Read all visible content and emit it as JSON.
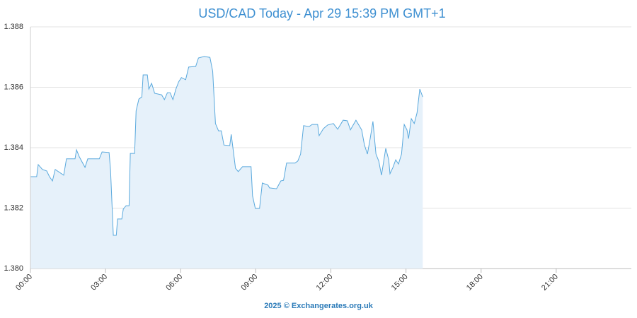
{
  "chart_data": {
    "type": "area",
    "title": "USD/CAD Today - Apr 29 15:39 PM GMT+1",
    "credit": "2025 © Exchangerates.org.uk",
    "line_color": "#5aa9dd",
    "fill_color": "#e6f1fa",
    "grid": true,
    "xlim": [
      0,
      24
    ],
    "xticks": [
      {
        "value": 0,
        "label": "00:00"
      },
      {
        "value": 3,
        "label": "03:00"
      },
      {
        "value": 6,
        "label": "06:00"
      },
      {
        "value": 9,
        "label": "09:00"
      },
      {
        "value": 12,
        "label": "12:00"
      },
      {
        "value": 15,
        "label": "15:00"
      },
      {
        "value": 18,
        "label": "18:00"
      },
      {
        "value": 21,
        "label": "21:00"
      }
    ],
    "ylim": [
      1.38,
      1.388
    ],
    "yticks": [
      {
        "value": 1.38,
        "label": "1.380"
      },
      1.382,
      1.384,
      1.386,
      {
        "value": 1.388,
        "label": "1.388"
      }
    ],
    "x": [
      0,
      0.25,
      0.31,
      0.48,
      0.65,
      0.76,
      0.88,
      0.99,
      1.33,
      1.44,
      1.78,
      1.84,
      1.95,
      2.18,
      2.29,
      2.75,
      2.86,
      3.14,
      3.2,
      3.31,
      3.43,
      3.48,
      3.65,
      3.71,
      3.82,
      3.94,
      3.99,
      4.16,
      4.22,
      4.33,
      4.45,
      4.5,
      4.67,
      4.73,
      4.84,
      4.96,
      5.24,
      5.35,
      5.47,
      5.58,
      5.69,
      5.81,
      5.92,
      6.03,
      6.2,
      6.32,
      6.6,
      6.71,
      6.94,
      7.17,
      7.28,
      7.39,
      7.51,
      7.62,
      7.73,
      7.96,
      8.02,
      8.19,
      8.3,
      8.47,
      8.81,
      8.87,
      8.98,
      9.15,
      9.26,
      9.49,
      9.55,
      9.83,
      10,
      10.11,
      10.23,
      10.57,
      10.68,
      10.79,
      10.91,
      11.13,
      11.25,
      11.47,
      11.53,
      11.7,
      11.87,
      12.1,
      12.27,
      12.49,
      12.66,
      12.78,
      13.0,
      13.23,
      13.34,
      13.46,
      13.57,
      13.68,
      13.8,
      13.91,
      14.02,
      14.19,
      14.31,
      14.36,
      14.48,
      14.59,
      14.7,
      14.82,
      14.93,
      15.04,
      15.1,
      15.21,
      15.33,
      15.44,
      15.55,
      15.67
    ],
    "values": [
      1.38304,
      1.38304,
      1.38344,
      1.38328,
      1.38323,
      1.38304,
      1.3829,
      1.38328,
      1.38309,
      1.38363,
      1.38363,
      1.38393,
      1.3837,
      1.38335,
      1.38363,
      1.38363,
      1.38386,
      1.38384,
      1.38325,
      1.3811,
      1.3811,
      1.38164,
      1.38164,
      1.38197,
      1.38208,
      1.38208,
      1.38381,
      1.38381,
      1.38522,
      1.38561,
      1.38568,
      1.38641,
      1.38641,
      1.38594,
      1.38613,
      1.3858,
      1.38575,
      1.38559,
      1.38582,
      1.38582,
      1.38559,
      1.38594,
      1.38618,
      1.38632,
      1.38625,
      1.38667,
      1.38669,
      1.38697,
      1.38702,
      1.38699,
      1.38653,
      1.3848,
      1.38456,
      1.38456,
      1.38409,
      1.38407,
      1.38444,
      1.38332,
      1.38321,
      1.38337,
      1.38337,
      1.38241,
      1.38199,
      1.38199,
      1.38283,
      1.38276,
      1.38267,
      1.38264,
      1.3829,
      1.38292,
      1.38349,
      1.38349,
      1.38356,
      1.38379,
      1.38473,
      1.3847,
      1.38477,
      1.38477,
      1.3844,
      1.38463,
      1.38475,
      1.3848,
      1.38461,
      1.38491,
      1.38489,
      1.38459,
      1.38491,
      1.38459,
      1.38409,
      1.38379,
      1.3843,
      1.38487,
      1.38379,
      1.38356,
      1.38309,
      1.38398,
      1.3836,
      1.38314,
      1.38335,
      1.3836,
      1.38346,
      1.38379,
      1.38477,
      1.38459,
      1.3843,
      1.38496,
      1.3848,
      1.38515,
      1.38594,
      1.38568
    ]
  }
}
